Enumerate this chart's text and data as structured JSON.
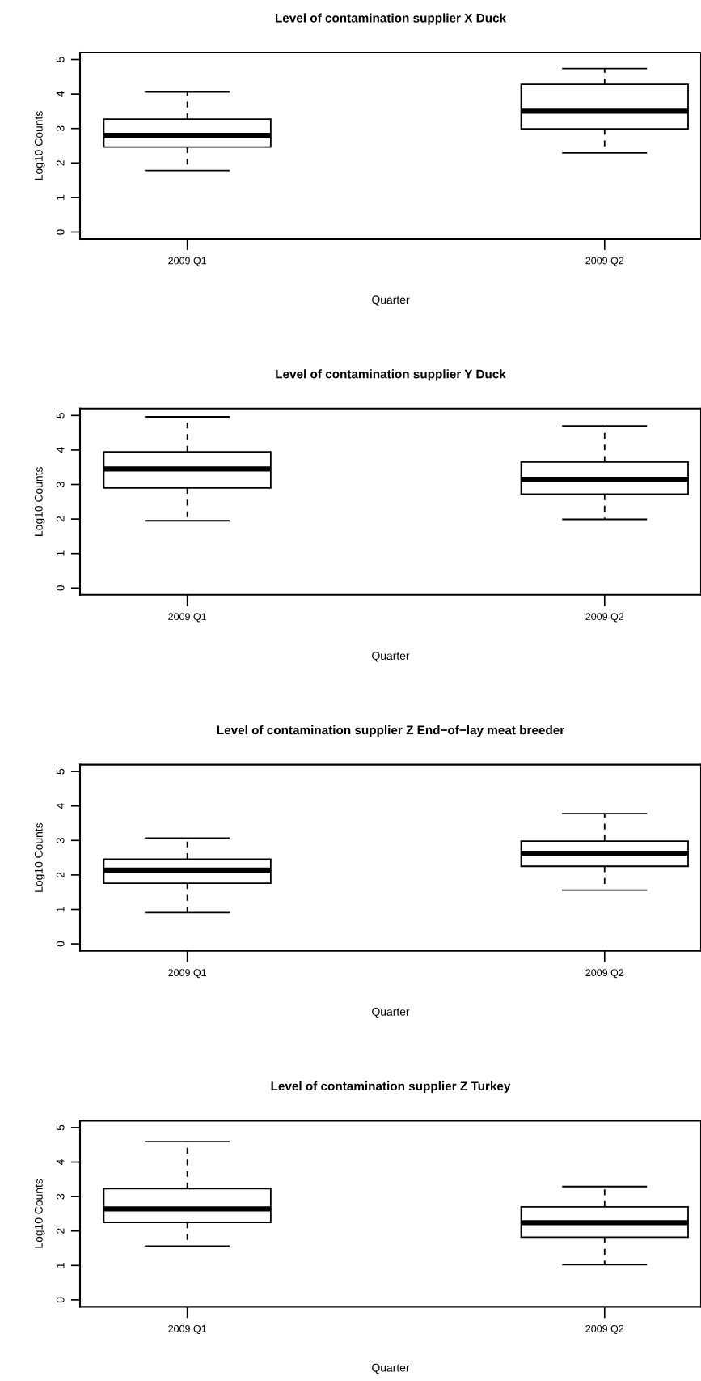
{
  "chart_data": [
    {
      "type": "box",
      "title": "Level of contamination supplier X Duck",
      "xlabel": "Quarter",
      "ylabel": "Log10 Counts",
      "categories": [
        "2009 Q1",
        "2009 Q2"
      ],
      "ylim": [
        -0.2,
        5.2
      ],
      "yticks": [
        0,
        1,
        2,
        3,
        4,
        5
      ],
      "grid": false,
      "boxes": [
        {
          "low": 1.78,
          "q1": 2.46,
          "median": 2.8,
          "q3": 3.27,
          "high": 4.06
        },
        {
          "low": 2.29,
          "q1": 2.99,
          "median": 3.5,
          "q3": 4.28,
          "high": 4.74
        }
      ]
    },
    {
      "type": "box",
      "title": "Level of contamination supplier Y Duck",
      "xlabel": "Quarter",
      "ylabel": "Log10 Counts",
      "categories": [
        "2009 Q1",
        "2009 Q2"
      ],
      "ylim": [
        -0.2,
        5.2
      ],
      "yticks": [
        0,
        1,
        2,
        3,
        4,
        5
      ],
      "grid": false,
      "boxes": [
        {
          "low": 1.95,
          "q1": 2.9,
          "median": 3.45,
          "q3": 3.95,
          "high": 4.96
        },
        {
          "low": 1.99,
          "q1": 2.72,
          "median": 3.15,
          "q3": 3.65,
          "high": 4.7
        }
      ]
    },
    {
      "type": "box",
      "title": "Level of contamination supplier Z End−of−lay meat breeder",
      "xlabel": "Quarter",
      "ylabel": "Log10 Counts",
      "categories": [
        "2009 Q1",
        "2009 Q2"
      ],
      "ylim": [
        -0.2,
        5.2
      ],
      "yticks": [
        0,
        1,
        2,
        3,
        4,
        5
      ],
      "grid": false,
      "boxes": [
        {
          "low": 0.91,
          "q1": 1.76,
          "median": 2.14,
          "q3": 2.46,
          "high": 3.07
        },
        {
          "low": 1.56,
          "q1": 2.25,
          "median": 2.63,
          "q3": 2.98,
          "high": 3.78
        }
      ]
    },
    {
      "type": "box",
      "title": "Level of contamination supplier Z Turkey",
      "xlabel": "Quarter",
      "ylabel": "Log10 Counts",
      "categories": [
        "2009 Q1",
        "2009 Q2"
      ],
      "ylim": [
        -0.2,
        5.2
      ],
      "yticks": [
        0,
        1,
        2,
        3,
        4,
        5
      ],
      "grid": false,
      "boxes": [
        {
          "low": 1.56,
          "q1": 2.25,
          "median": 2.64,
          "q3": 3.23,
          "high": 4.6
        },
        {
          "low": 1.02,
          "q1": 1.82,
          "median": 2.24,
          "q3": 2.7,
          "high": 3.29
        }
      ]
    }
  ]
}
